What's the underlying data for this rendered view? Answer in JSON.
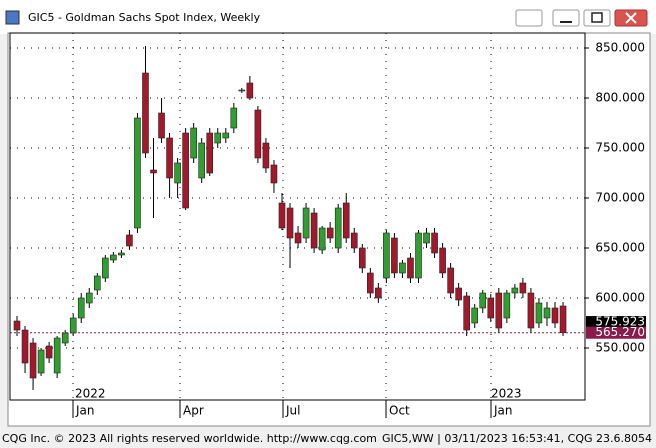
{
  "window_title": "GIC5 - Goldman Sachs Spot Index, Weekly",
  "chart_data": {
    "type": "candlestick",
    "up_color": "#2f9f2f",
    "down_color": "#a3192b",
    "open": [
      577,
      568,
      555,
      525,
      552,
      525,
      555,
      565,
      580,
      595,
      608,
      620,
      638,
      643,
      663,
      670,
      825,
      728,
      785,
      760,
      715,
      765,
      740,
      720,
      765,
      755,
      760,
      770,
      808,
      815,
      788,
      755,
      733,
      695,
      690,
      665,
      660,
      685,
      648,
      670,
      650,
      695,
      665,
      650,
      625,
      610,
      620,
      660,
      625,
      640,
      620,
      655,
      665,
      650,
      630,
      610,
      602,
      575,
      590,
      600,
      605,
      580,
      605,
      615,
      605,
      575,
      580,
      590,
      592
    ],
    "high": [
      582,
      572,
      560,
      550,
      556,
      562,
      568,
      584,
      605,
      610,
      625,
      643,
      646,
      648,
      668,
      785,
      852,
      760,
      800,
      765,
      740,
      770,
      775,
      760,
      770,
      770,
      770,
      795,
      810,
      822,
      792,
      760,
      738,
      705,
      695,
      672,
      695,
      690,
      672,
      676,
      694,
      705,
      670,
      654,
      630,
      615,
      668,
      665,
      638,
      645,
      668,
      670,
      670,
      655,
      635,
      615,
      606,
      594,
      608,
      604,
      610,
      608,
      614,
      620,
      610,
      600,
      596,
      596,
      596
    ],
    "low": [
      562,
      525,
      508,
      522,
      535,
      520,
      552,
      562,
      575,
      590,
      603,
      616,
      635,
      640,
      648,
      665,
      740,
      680,
      755,
      700,
      700,
      688,
      735,
      715,
      722,
      750,
      755,
      765,
      805,
      798,
      735,
      725,
      705,
      668,
      630,
      650,
      655,
      645,
      644,
      655,
      645,
      655,
      645,
      625,
      600,
      595,
      615,
      620,
      620,
      615,
      615,
      650,
      640,
      620,
      600,
      592,
      562,
      570,
      585,
      576,
      565,
      575,
      600,
      600,
      565,
      570,
      572,
      570,
      562
    ],
    "close": [
      568,
      535,
      520,
      548,
      540,
      560,
      565,
      580,
      600,
      605,
      622,
      640,
      643,
      645,
      652,
      780,
      745,
      725,
      760,
      720,
      735,
      690,
      770,
      755,
      725,
      765,
      765,
      790,
      808,
      800,
      740,
      730,
      715,
      670,
      660,
      655,
      690,
      650,
      670,
      660,
      690,
      660,
      650,
      630,
      605,
      600,
      665,
      625,
      635,
      620,
      665,
      665,
      645,
      625,
      605,
      598,
      568,
      590,
      605,
      580,
      570,
      605,
      610,
      605,
      570,
      595,
      590,
      575,
      565.27
    ],
    "ylim": [
      498,
      865
    ],
    "yticks": [
      {
        "value": 550,
        "label": "550.000"
      },
      {
        "value": 600,
        "label": "600.000"
      },
      {
        "value": 650,
        "label": "650.000"
      },
      {
        "value": 700,
        "label": "700.000"
      },
      {
        "value": 750,
        "label": "750.000"
      },
      {
        "value": 800,
        "label": "800.000"
      },
      {
        "value": 850,
        "label": "850.000"
      }
    ],
    "month_labels": [
      "Jan",
      "Apr",
      "Jul",
      "Oct",
      "Jan"
    ],
    "year_labels": [
      "2022",
      "2023"
    ],
    "price_labels": [
      {
        "value": 575.923,
        "label": "575.923",
        "color": "#000000"
      },
      {
        "value": 565.27,
        "label": "565.270",
        "color": "#8b1a4a"
      }
    ],
    "grid": true
  },
  "footer": {
    "copyright": "CQG Inc. © 2023 All rights reserved worldwide. http://www.cqg.com",
    "status": "GIC5,WW | 03/11/2023 16:53:41, CQG 23.6.8054"
  }
}
